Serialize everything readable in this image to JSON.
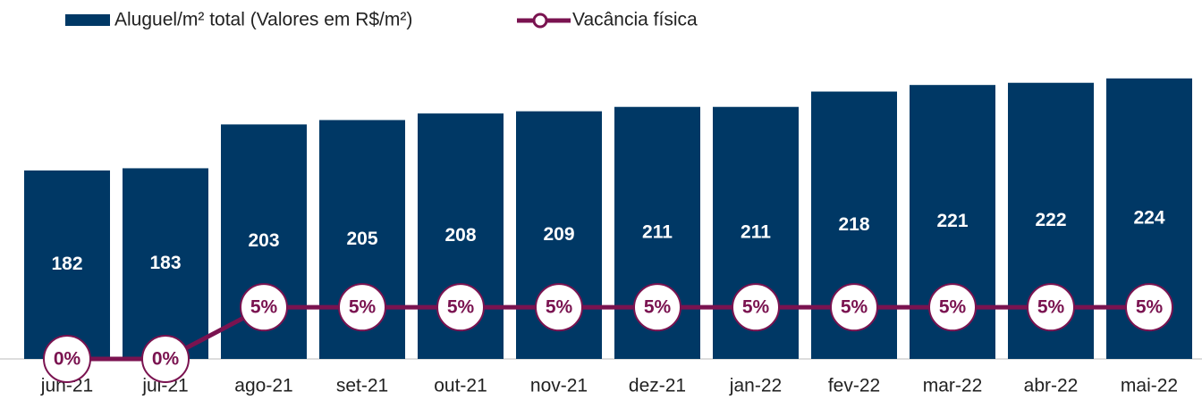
{
  "chart_data": {
    "type": "bar",
    "categories": [
      "jun-21",
      "jul-21",
      "ago-21",
      "set-21",
      "out-21",
      "nov-21",
      "dez-21",
      "jan-22",
      "fev-22",
      "mar-22",
      "abr-22",
      "mai-22"
    ],
    "ylim": [
      96,
      228
    ],
    "y2lim": [
      0,
      28
    ],
    "legend": "top-left",
    "series": [
      {
        "name": "Aluguel/m² total (Valores em R$/m²)",
        "type": "bar",
        "color": "#003865",
        "values": [
          182,
          183,
          203,
          205,
          208,
          209,
          211,
          211,
          218,
          221,
          222,
          224
        ]
      },
      {
        "name": "Vacância física",
        "type": "line",
        "axis": "y2",
        "color": "#7a1350",
        "values": [
          0,
          0,
          5,
          5,
          5,
          5,
          5,
          5,
          5,
          5,
          5,
          5
        ],
        "value_labels": [
          "0%",
          "0%",
          "5%",
          "5%",
          "5%",
          "5%",
          "5%",
          "5%",
          "5%",
          "5%",
          "5%",
          "5%"
        ]
      }
    ]
  }
}
